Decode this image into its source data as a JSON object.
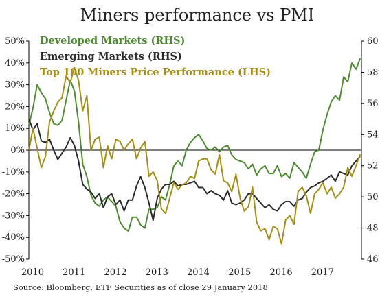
{
  "title": "Miners performance vs PMI",
  "source": "Source: Bloomberg, ETF Securities as of close 29 January 2018",
  "colors": {
    "developed": "#4e8a31",
    "emerging": "#2b2b2b",
    "miners": "#a58d16",
    "axis": "#000000"
  },
  "chart_data": {
    "type": "line",
    "title": "Miners performance vs PMI",
    "x_ticks": [
      "2010",
      "2011",
      "2012",
      "2013",
      "2014",
      "2015",
      "2016",
      "2017"
    ],
    "y_left": {
      "ticks": [
        "50%",
        "40%",
        "30%",
        "20%",
        "10%",
        "0%",
        "-10%",
        "-20%",
        "-30%",
        "-40%",
        "-50%"
      ],
      "ylim": [
        -50,
        50
      ]
    },
    "y_right": {
      "ticks": [
        "60",
        "58",
        "56",
        "54",
        "52",
        "50",
        "48",
        "46"
      ],
      "ylim": [
        46,
        60
      ]
    },
    "grid": false,
    "legend_position": "top-left",
    "series": [
      {
        "name": "Developed Markets (RHS)",
        "axis": "right",
        "color_key": "developed",
        "x": [
          2009.95,
          2010.05,
          2010.15,
          2010.25,
          2010.35,
          2010.45,
          2010.55,
          2010.65,
          2010.75,
          2010.85,
          2010.95,
          2011.05,
          2011.15,
          2011.25,
          2011.35,
          2011.45,
          2011.55,
          2011.65,
          2011.75,
          2011.85,
          2011.95,
          2012.05,
          2012.15,
          2012.25,
          2012.35,
          2012.45,
          2012.55,
          2012.65,
          2012.75,
          2012.85,
          2012.95,
          2013.05,
          2013.15,
          2013.25,
          2013.35,
          2013.45,
          2013.55,
          2013.65,
          2013.75,
          2013.85,
          2013.95,
          2014.05,
          2014.15,
          2014.25,
          2014.35,
          2014.45,
          2014.55,
          2014.65,
          2014.75,
          2014.85,
          2014.95,
          2015.05,
          2015.15,
          2015.25,
          2015.35,
          2015.45,
          2015.55,
          2015.65,
          2015.75,
          2015.85,
          2015.95,
          2016.05,
          2016.15,
          2016.25,
          2016.35,
          2016.45,
          2016.55,
          2016.65,
          2016.75,
          2016.85,
          2016.95,
          2017.05,
          2017.15,
          2017.25,
          2017.35,
          2017.45,
          2017.55,
          2017.65,
          2017.75,
          2017.85,
          2017.95
        ],
        "values": [
          54.6,
          55.7,
          57.2,
          56.7,
          56.3,
          55.4,
          54.7,
          54.6,
          54.9,
          56.2,
          57.5,
          56.8,
          54.8,
          52.1,
          51.3,
          50.1,
          49.6,
          49.4,
          49.8,
          50.0,
          49.7,
          49.4,
          48.4,
          48.0,
          47.8,
          48.7,
          48.7,
          48.2,
          48.0,
          49.2,
          49.2,
          49.3,
          50.0,
          49.8,
          50.8,
          52.0,
          52.3,
          52.0,
          53.0,
          53.5,
          53.8,
          54.0,
          53.6,
          53.1,
          53.0,
          53.2,
          52.9,
          53.2,
          53.3,
          52.7,
          52.4,
          52.3,
          52.2,
          51.8,
          52.1,
          51.4,
          51.8,
          52.0,
          51.5,
          51.5,
          52.0,
          51.3,
          51.5,
          51.2,
          52.2,
          51.9,
          51.6,
          51.2,
          52.1,
          52.9,
          53.0,
          54.3,
          55.3,
          56.1,
          56.5,
          56.2,
          57.7,
          57.4,
          58.6,
          58.2,
          58.9
        ]
      },
      {
        "name": "Emerging Markets (RHS)",
        "axis": "right",
        "color_key": "emerging",
        "x": [
          2009.95,
          2010.05,
          2010.15,
          2010.25,
          2010.35,
          2010.45,
          2010.55,
          2010.65,
          2010.75,
          2010.85,
          2010.95,
          2011.05,
          2011.15,
          2011.25,
          2011.35,
          2011.45,
          2011.55,
          2011.65,
          2011.75,
          2011.85,
          2011.95,
          2012.05,
          2012.15,
          2012.25,
          2012.35,
          2012.45,
          2012.55,
          2012.65,
          2012.75,
          2012.85,
          2012.95,
          2013.05,
          2013.15,
          2013.25,
          2013.35,
          2013.45,
          2013.55,
          2013.65,
          2013.75,
          2013.85,
          2013.95,
          2014.05,
          2014.15,
          2014.25,
          2014.35,
          2014.45,
          2014.55,
          2014.65,
          2014.75,
          2014.85,
          2014.95,
          2015.05,
          2015.15,
          2015.25,
          2015.35,
          2015.45,
          2015.55,
          2015.65,
          2015.75,
          2015.85,
          2015.95,
          2016.05,
          2016.15,
          2016.25,
          2016.35,
          2016.45,
          2016.55,
          2016.65,
          2016.75,
          2016.85,
          2016.95,
          2017.05,
          2017.15,
          2017.25,
          2017.35,
          2017.45,
          2017.55,
          2017.65,
          2017.75,
          2017.85,
          2017.95
        ],
        "values": [
          55.0,
          54.3,
          54.7,
          53.6,
          53.5,
          53.7,
          53.0,
          52.4,
          52.8,
          53.2,
          53.8,
          53.3,
          52.3,
          50.8,
          50.5,
          50.3,
          49.9,
          50.2,
          49.3,
          50.0,
          50.2,
          49.5,
          49.8,
          49.1,
          49.8,
          49.8,
          50.7,
          51.3,
          50.6,
          49.6,
          48.5,
          49.9,
          50.5,
          50.8,
          50.8,
          51.0,
          50.7,
          50.8,
          50.8,
          50.9,
          51.0,
          50.6,
          50.6,
          50.2,
          50.4,
          50.2,
          50.1,
          49.8,
          50.4,
          49.6,
          49.5,
          49.6,
          49.8,
          50.2,
          50.2,
          49.9,
          49.6,
          49.3,
          49.5,
          49.2,
          49.1,
          49.5,
          49.7,
          49.7,
          49.4,
          49.8,
          49.9,
          50.3,
          50.6,
          50.7,
          50.9,
          51.0,
          51.2,
          51.4,
          51.0,
          51.6,
          51.5,
          51.4,
          52.0,
          52.3,
          52.6
        ]
      },
      {
        "name": "Top 100 Miners Price Performance (LHS)",
        "axis": "left",
        "color_key": "miners",
        "x": [
          2009.95,
          2010.05,
          2010.15,
          2010.25,
          2010.35,
          2010.45,
          2010.55,
          2010.65,
          2010.75,
          2010.85,
          2010.95,
          2011.05,
          2011.15,
          2011.25,
          2011.35,
          2011.45,
          2011.55,
          2011.65,
          2011.75,
          2011.85,
          2011.95,
          2012.05,
          2012.15,
          2012.25,
          2012.35,
          2012.45,
          2012.55,
          2012.65,
          2012.75,
          2012.85,
          2012.95,
          2013.05,
          2013.15,
          2013.25,
          2013.35,
          2013.45,
          2013.55,
          2013.65,
          2013.75,
          2013.85,
          2013.95,
          2014.05,
          2014.15,
          2014.25,
          2014.35,
          2014.45,
          2014.55,
          2014.65,
          2014.75,
          2014.85,
          2014.95,
          2015.05,
          2015.15,
          2015.25,
          2015.35,
          2015.45,
          2015.55,
          2015.65,
          2015.75,
          2015.85,
          2015.95,
          2016.05,
          2016.15,
          2016.25,
          2016.35,
          2016.45,
          2016.55,
          2016.65,
          2016.75,
          2016.85,
          2016.95,
          2017.05,
          2017.15,
          2017.25,
          2017.35,
          2017.45,
          2017.55,
          2017.65,
          2017.75,
          2017.85,
          2017.95
        ],
        "values": [
          0,
          10,
          1,
          -8,
          -3,
          13,
          18,
          22,
          24,
          34,
          31,
          38,
          32,
          18,
          25,
          0,
          5,
          6,
          -8,
          2,
          -4,
          5,
          4,
          0,
          3,
          5,
          -4,
          1,
          4,
          -12,
          -10,
          -14,
          -27,
          -29,
          -22,
          -15,
          -18,
          -16,
          -15,
          -12,
          -13,
          -5,
          -4,
          -4,
          -9,
          -11,
          -2,
          -14,
          -15,
          -19,
          -11,
          -22,
          -28,
          -26,
          -17,
          -33,
          -37,
          -36,
          -41,
          -35,
          -36,
          -43,
          -32,
          -30,
          -34,
          -19,
          -17,
          -21,
          -29,
          -20,
          -18,
          -15,
          -20,
          -17,
          -22,
          -20,
          -17,
          -8,
          -12,
          -7,
          -2
        ]
      }
    ]
  }
}
